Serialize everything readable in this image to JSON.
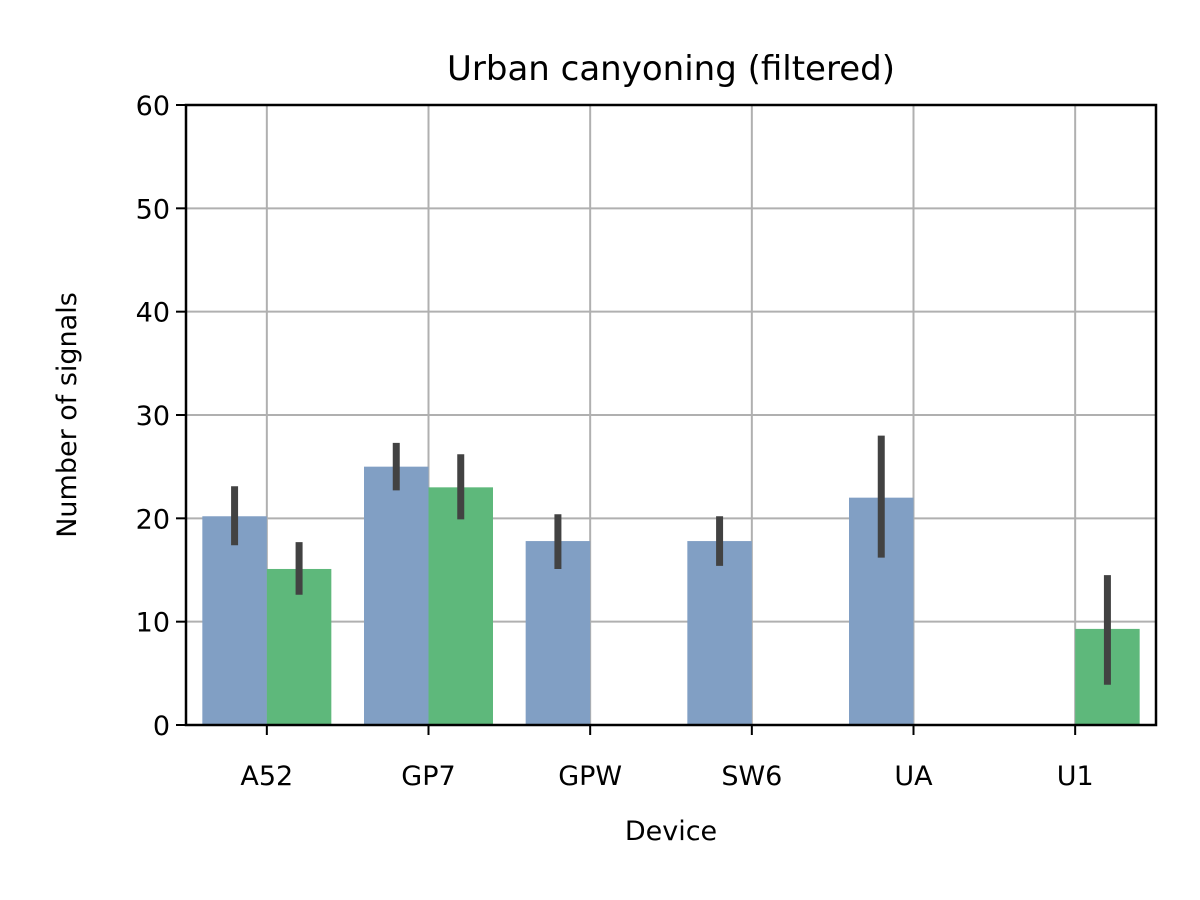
{
  "chart_data": {
    "type": "bar",
    "title": "Urban canyoning (filtered)",
    "xlabel": "Device",
    "ylabel": "Number of signals",
    "ylim": [
      0,
      60
    ],
    "yticks": [
      0,
      10,
      20,
      30,
      40,
      50,
      60
    ],
    "grid": true,
    "legend": "none",
    "categories": [
      "A52",
      "GP7",
      "GPW",
      "SW6",
      "UA",
      "U1"
    ],
    "series": [
      {
        "color": "#819fc4",
        "values": [
          20.2,
          25.0,
          17.8,
          17.8,
          22.0,
          null
        ],
        "error_low": [
          17.4,
          22.7,
          15.1,
          15.4,
          16.2,
          null
        ],
        "error_high": [
          23.1,
          27.3,
          20.4,
          20.2,
          28.0,
          null
        ]
      },
      {
        "color": "#5eb87b",
        "values": [
          15.1,
          23.0,
          null,
          null,
          null,
          9.3
        ],
        "error_low": [
          12.6,
          19.9,
          null,
          null,
          null,
          3.9
        ],
        "error_high": [
          17.7,
          26.2,
          null,
          null,
          null,
          14.5
        ]
      }
    ],
    "errorbar_color": "#424242",
    "grid_color": "#b0b0b0"
  }
}
